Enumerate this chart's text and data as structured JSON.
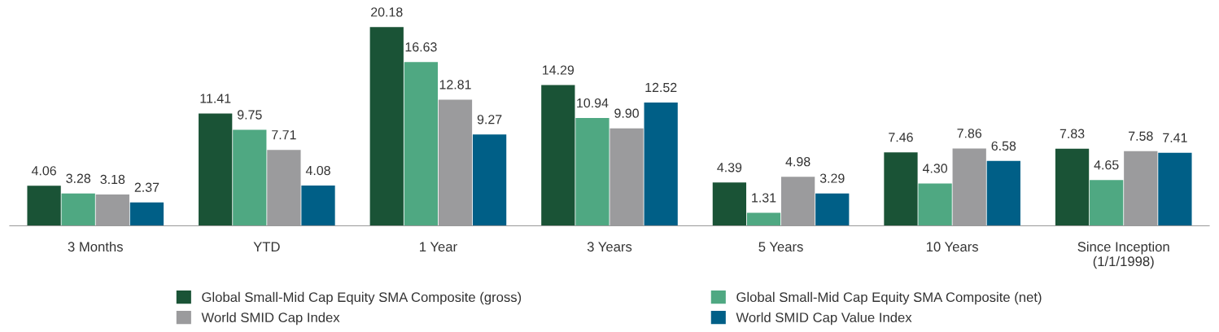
{
  "chart_data": {
    "type": "bar",
    "categories": [
      "3 Months",
      "YTD",
      "1 Year",
      "3 Years",
      "5 Years",
      "10 Years",
      "Since Inception\n(1/1/1998)"
    ],
    "series": [
      {
        "name": "Global Small-Mid Cap Equity SMA Composite (gross)",
        "color": "#1a5336",
        "values": [
          4.06,
          11.41,
          20.18,
          14.29,
          4.39,
          7.46,
          7.83
        ],
        "value_labels": [
          "4.06",
          "11.41",
          "20.18",
          "14.29",
          "4.39",
          "7.46",
          "7.83"
        ]
      },
      {
        "name": "Global Small-Mid Cap Equity SMA Composite (net)",
        "color": "#4fa882",
        "values": [
          3.28,
          9.75,
          16.63,
          10.94,
          1.31,
          4.3,
          4.65
        ],
        "value_labels": [
          "3.28",
          "9.75",
          "16.63",
          "10.94",
          "1.31",
          "4.30",
          "4.65"
        ]
      },
      {
        "name": "World SMID Cap Index",
        "color": "#9b9b9d",
        "values": [
          3.18,
          7.71,
          12.81,
          9.9,
          4.98,
          7.86,
          7.58
        ],
        "value_labels": [
          "3.18",
          "7.71",
          "12.81",
          "9.90",
          "4.98",
          "7.86",
          "7.58"
        ]
      },
      {
        "name": "World SMID Cap Value Index",
        "color": "#005f87",
        "values": [
          2.37,
          4.08,
          9.27,
          12.52,
          3.29,
          6.58,
          7.41
        ],
        "value_labels": [
          "2.37",
          "4.08",
          "9.27",
          "12.52",
          "3.29",
          "6.58",
          "7.41"
        ]
      }
    ],
    "legend": "bottom",
    "tick_labels": "x"
  }
}
